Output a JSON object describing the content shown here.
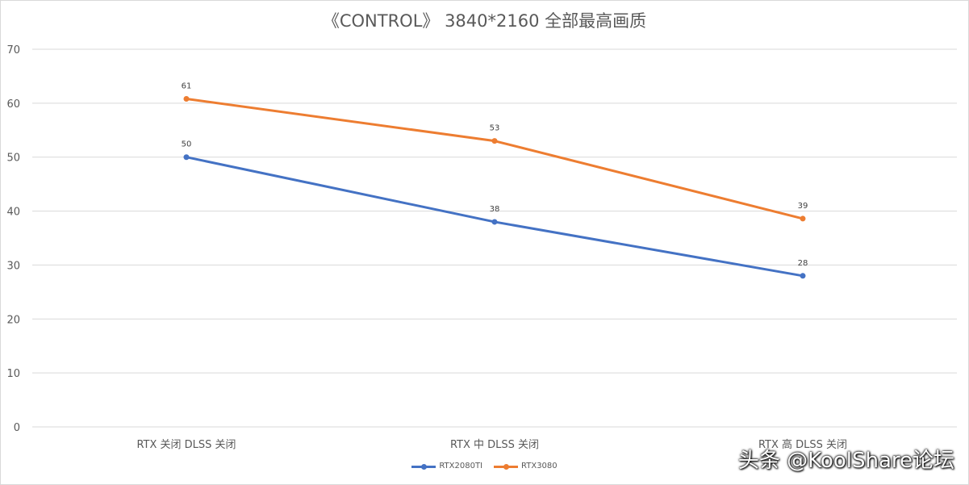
{
  "colors": {
    "series1": "#4472c4",
    "series2": "#ed7d31",
    "grid": "#d9d9d9",
    "text": "#595959"
  },
  "watermark": "头条 @KoolShare论坛",
  "chart_data": {
    "type": "line",
    "title": "《CONTROL》 3840*2160 全部最高画质",
    "xlabel": "",
    "ylabel": "",
    "ylim": [
      0,
      70
    ],
    "yticks": [
      0,
      10,
      20,
      30,
      40,
      50,
      60,
      70
    ],
    "ytick_labels": [
      "0",
      "10",
      "20",
      "30",
      "40",
      "50",
      "60",
      "70"
    ],
    "grid": true,
    "legend_position": "bottom",
    "categories": [
      "RTX 关闭 DLSS 关闭",
      "RTX 中 DLSS 关闭",
      "RTX 高 DLSS 关闭"
    ],
    "series": [
      {
        "name": "RTX2080TI",
        "values": [
          50,
          38,
          28
        ],
        "labels": [
          "50",
          "38",
          "28"
        ]
      },
      {
        "name": "RTX3080",
        "values": [
          60.8,
          53,
          38.6
        ],
        "labels": [
          "61",
          "53",
          "39"
        ]
      }
    ]
  }
}
